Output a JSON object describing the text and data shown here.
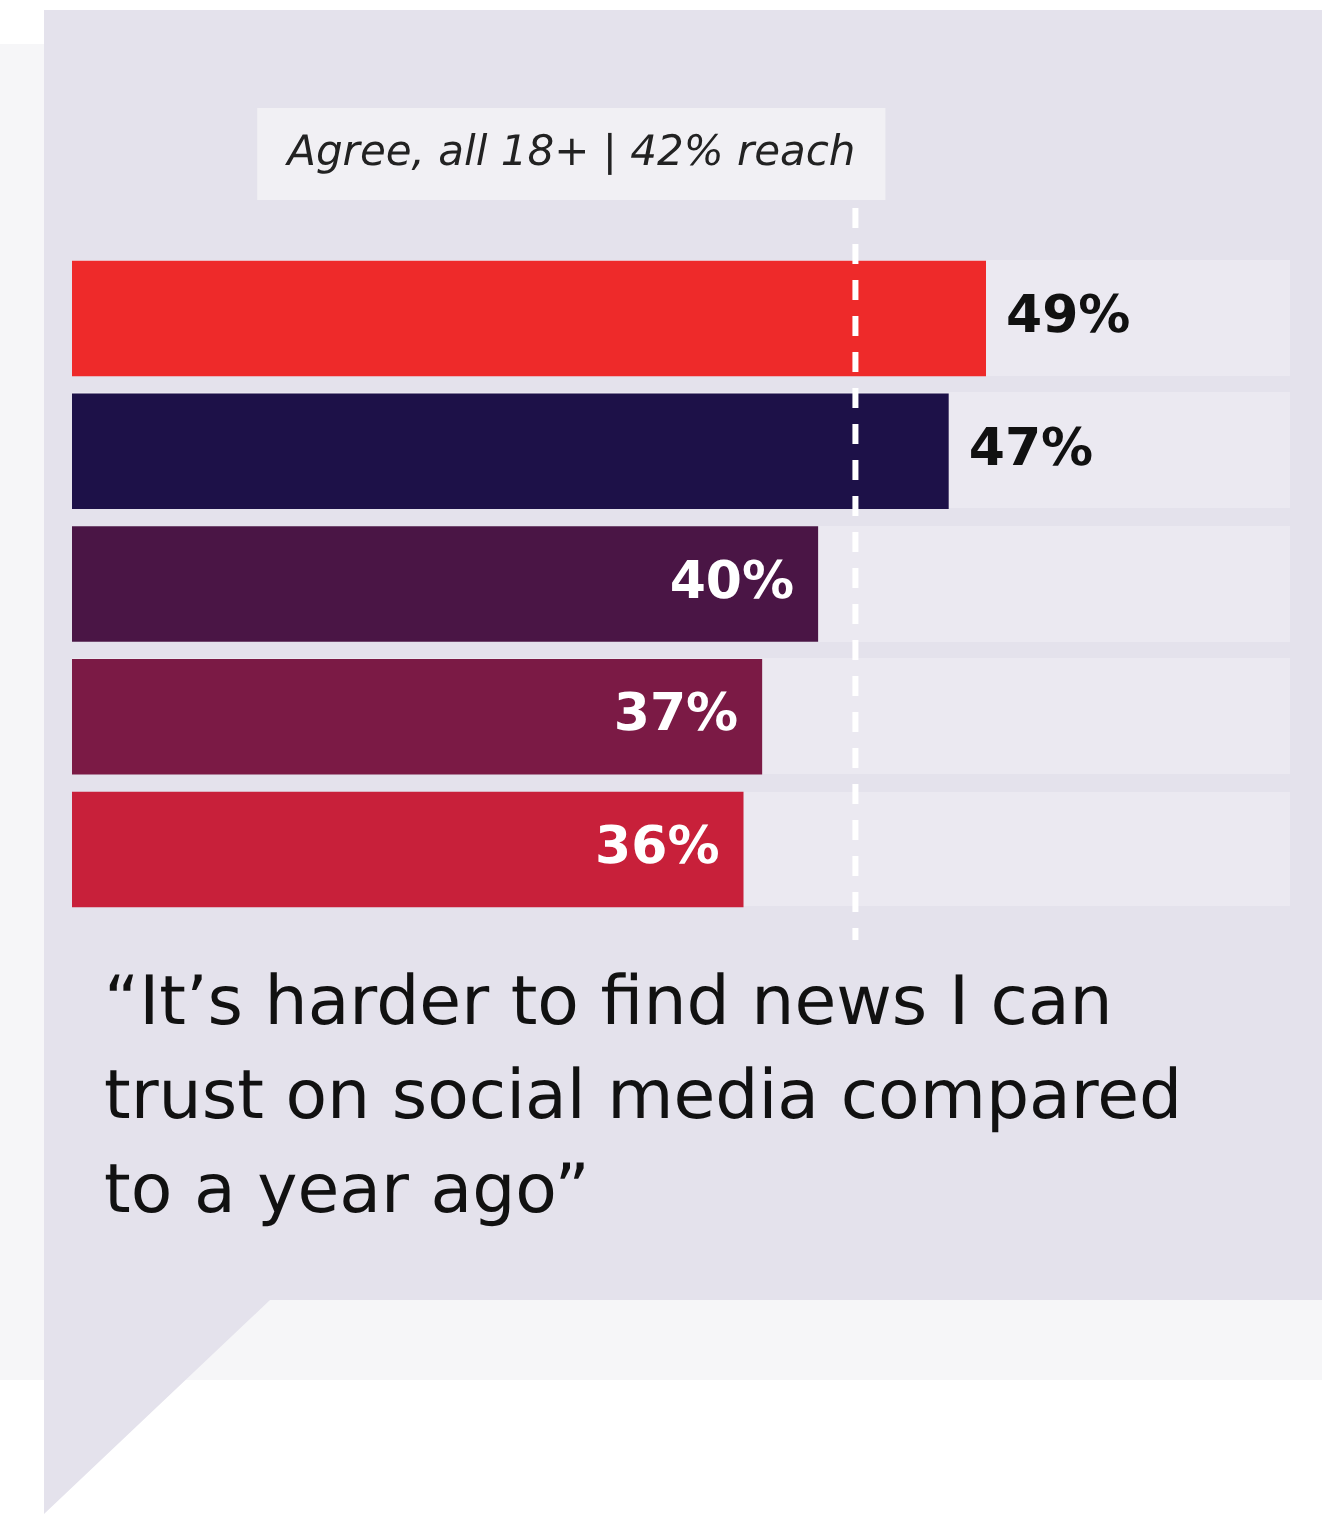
{
  "chart_data": {
    "type": "bar",
    "orientation": "horizontal",
    "title": "“It’s harder to find news I can trust on social media compared to a year ago”",
    "categories": [
      null,
      null,
      null,
      null,
      null
    ],
    "values": [
      49,
      47,
      40,
      37,
      36
    ],
    "value_labels": [
      "49%",
      "47%",
      "40%",
      "37%",
      "36%"
    ],
    "colors": [
      "#ee2a2a",
      "#1d1148",
      "#4a1545",
      "#7b1a45",
      "#c8203a"
    ],
    "tick_labels": false,
    "legend": false,
    "ref_lines": [
      {
        "axis": "x",
        "value": 42,
        "label": "Agree, all 18+ | 42% reach",
        "color": "#ffffff",
        "line_style": "dashed"
      }
    ]
  }
}
